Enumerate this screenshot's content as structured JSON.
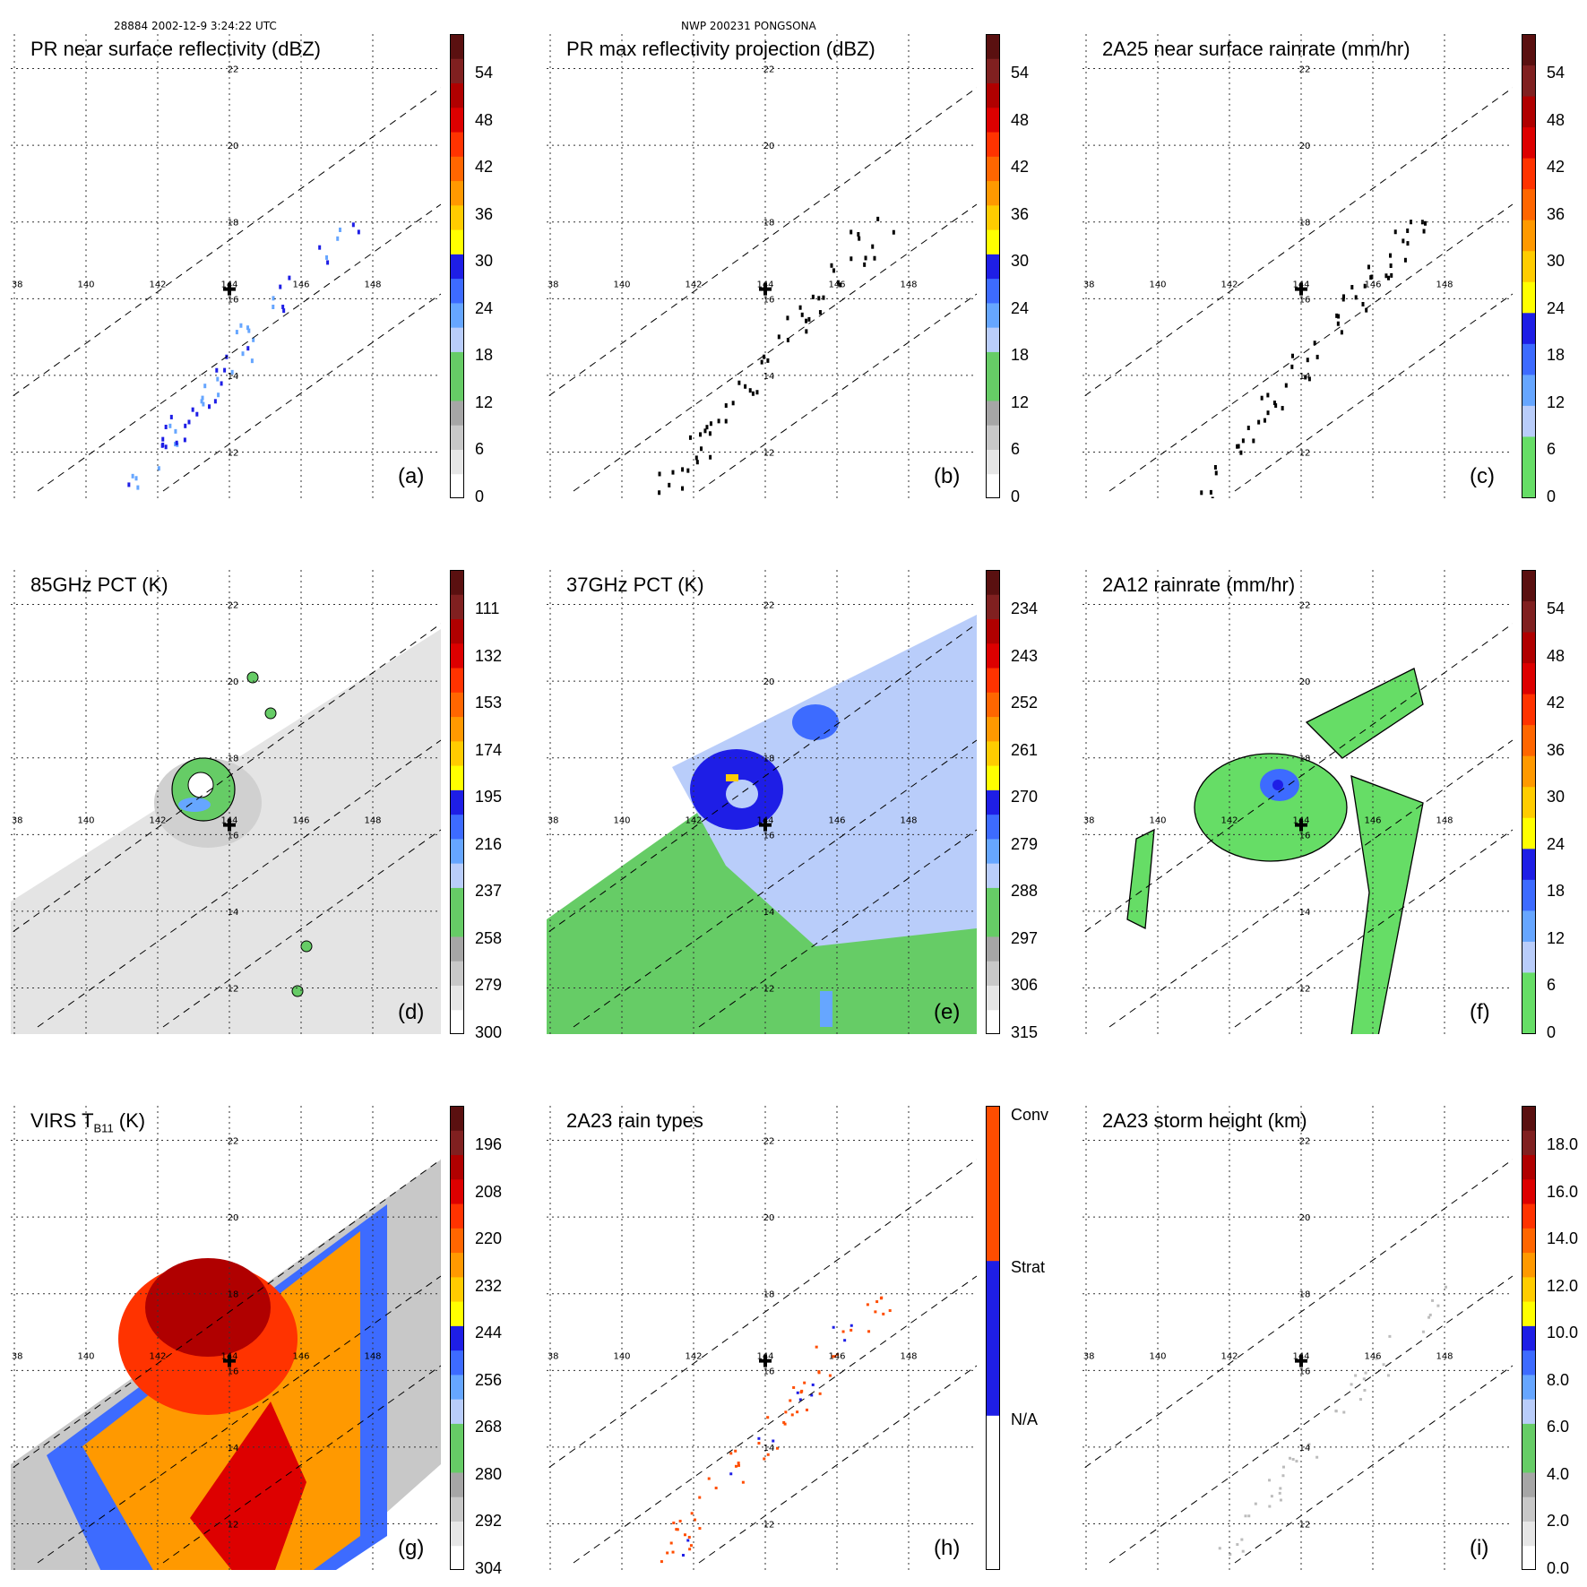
{
  "header": {
    "left": "28884 2002-12-9 3:24:22 UTC",
    "center": "NWP 200231 PONGSONA"
  },
  "map": {
    "lon_labels": [
      "138",
      "140",
      "142",
      "144",
      "146",
      "148"
    ],
    "lat_labels": [
      "12",
      "14",
      "16",
      "18",
      "20",
      "22"
    ],
    "storm_marker": "storm-center-cross"
  },
  "panels": [
    {
      "id": "a",
      "title": "PR near surface reflectivity (dBZ)",
      "label": "(a)",
      "ticks": [
        "54",
        "48",
        "42",
        "36",
        "30",
        "24",
        "18",
        "12",
        "6",
        "0"
      ],
      "cmap": "refl",
      "field": "pr_swath_refl"
    },
    {
      "id": "b",
      "title": "PR max reflectivity projection (dBZ)",
      "label": "(b)",
      "ticks": [
        "54",
        "48",
        "42",
        "36",
        "30",
        "24",
        "18",
        "12",
        "6",
        "0"
      ],
      "cmap": "refl",
      "field": "pr_swath_outline"
    },
    {
      "id": "c",
      "title": "2A25 near surface rainrate (mm/hr)",
      "label": "(c)",
      "ticks": [
        "54",
        "48",
        "42",
        "36",
        "30",
        "24",
        "18",
        "12",
        "6",
        "0"
      ],
      "cmap": "rain",
      "field": "pr_swath_outline"
    },
    {
      "id": "d",
      "title": "85GHz PCT (K)",
      "label": "(d)",
      "ticks": [
        "111",
        "132",
        "153",
        "174",
        "195",
        "216",
        "237",
        "258",
        "279",
        "300"
      ],
      "cmap": "refl",
      "field": "tmi_85"
    },
    {
      "id": "e",
      "title": "37GHz PCT (K)",
      "label": "(e)",
      "ticks": [
        "234",
        "243",
        "252",
        "261",
        "270",
        "279",
        "288",
        "297",
        "306",
        "315"
      ],
      "cmap": "refl",
      "field": "tmi_37"
    },
    {
      "id": "f",
      "title": "2A12 rainrate (mm/hr)",
      "label": "(f)",
      "ticks": [
        "54",
        "48",
        "42",
        "36",
        "30",
        "24",
        "18",
        "12",
        "6",
        "0"
      ],
      "cmap": "rain",
      "field": "tmi_rain"
    },
    {
      "id": "g",
      "title_main": "VIRS T",
      "title_sub": "B11",
      "title_unit": " (K)",
      "label": "(g)",
      "ticks": [
        "196",
        "208",
        "220",
        "232",
        "244",
        "256",
        "268",
        "280",
        "292",
        "304"
      ],
      "cmap": "refl",
      "field": "virs"
    },
    {
      "id": "h",
      "title": "2A23 rain types",
      "label": "(h)",
      "ticks": [
        "Conv",
        "Strat",
        "N/A"
      ],
      "cmap": "types",
      "field": "rain_types"
    },
    {
      "id": "i",
      "title": "2A23 storm height (km)",
      "label": "(i)",
      "ticks": [
        "18.0",
        "16.0",
        "14.0",
        "12.0",
        "10.0",
        "8.0",
        "6.0",
        "4.0",
        "2.0",
        "0.0"
      ],
      "cmap": "refl",
      "field": "storm_height"
    }
  ],
  "colors": {
    "refl": [
      "#ffffff",
      "#e6e6e6",
      "#c8c8c8",
      "#a6a6a6",
      "#66cc66",
      "#66cc66",
      "#b9cdfa",
      "#66a6ff",
      "#3d6bff",
      "#1e1ee6",
      "#ffff00",
      "#ffcc00",
      "#ff9900",
      "#ff6600",
      "#ff3300",
      "#dd0000",
      "#b00000",
      "#802020",
      "#5a1010"
    ],
    "rain": [
      "#66dd66",
      "#66dd66",
      "#b9cdfa",
      "#66a6ff",
      "#3d6bff",
      "#1e1ee6",
      "#ffff00",
      "#ffcc00",
      "#ff9900",
      "#ff6600",
      "#ff3300",
      "#dd0000",
      "#b00000",
      "#802020",
      "#5a1010"
    ],
    "types": [
      "#ffffff",
      "#1e1ee6",
      "#ff4d00"
    ]
  }
}
